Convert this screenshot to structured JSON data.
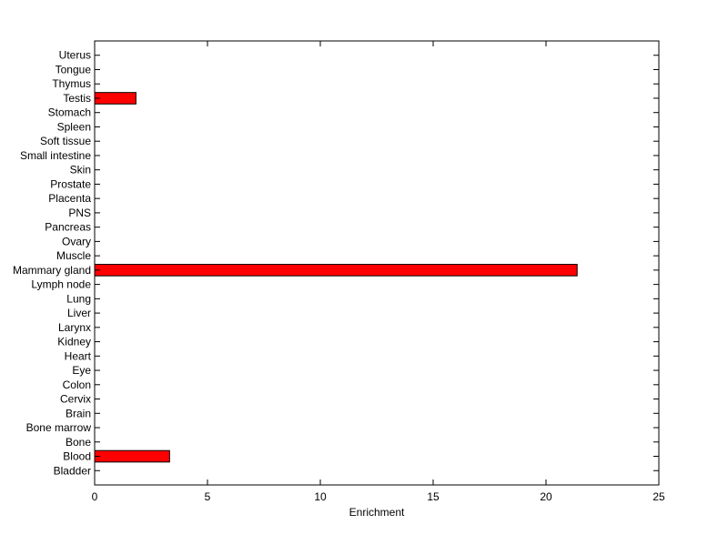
{
  "chart_data": {
    "type": "bar",
    "orientation": "horizontal",
    "title": "",
    "xlabel": "Enrichment",
    "ylabel": "",
    "xlim": [
      0,
      25
    ],
    "xticks": [
      0,
      5,
      10,
      15,
      20,
      25
    ],
    "grid": false,
    "bar_color": "#ff0000",
    "edge_color": "#000000",
    "categories": [
      "Bladder",
      "Blood",
      "Bone",
      "Bone marrow",
      "Brain",
      "Cervix",
      "Colon",
      "Eye",
      "Heart",
      "Kidney",
      "Larynx",
      "Liver",
      "Lung",
      "Lymph node",
      "Mammary gland",
      "Muscle",
      "Ovary",
      "Pancreas",
      "PNS",
      "Placenta",
      "Prostate",
      "Skin",
      "Small intestine",
      "Soft tissue",
      "Spleen",
      "Stomach",
      "Testis",
      "Thymus",
      "Tongue",
      "Uterus"
    ],
    "values": [
      0,
      3.32,
      0,
      0,
      0,
      0,
      0,
      0,
      0,
      0,
      0,
      0,
      0,
      0,
      21.38,
      0,
      0,
      0,
      0,
      0,
      0,
      0,
      0,
      0,
      0,
      0,
      1.83,
      0,
      0,
      0
    ]
  }
}
